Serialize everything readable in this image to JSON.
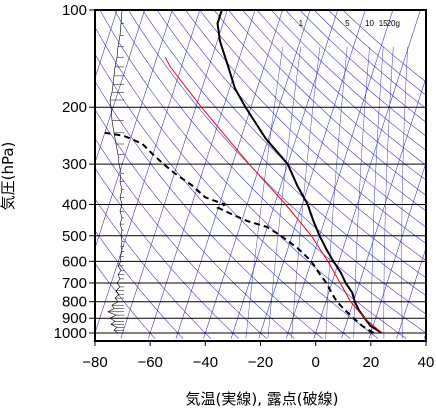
{
  "chart_data": {
    "type": "line",
    "title": "",
    "xlabel": "気温(実線), 露点(破線)",
    "ylabel": "気圧(hPa)",
    "xlim": [
      -80,
      40
    ],
    "ylim": [
      1040,
      100
    ],
    "yscale": "log",
    "x_ticks": [
      "−80",
      "−60",
      "−40",
      "−20",
      "0",
      "20",
      "40"
    ],
    "x_tick_values": [
      -80,
      -60,
      -40,
      -20,
      0,
      20,
      40
    ],
    "y_ticks": [
      "100",
      "200",
      "300",
      "400",
      "500",
      "600",
      "700",
      "800",
      "900",
      "1000"
    ],
    "y_tick_values": [
      100,
      200,
      300,
      400,
      500,
      600,
      700,
      800,
      900,
      1000
    ],
    "skew_degC_per_log_decade": 38,
    "mixing_ratio_labels": [
      "1",
      "5",
      "10",
      "15",
      "20g"
    ],
    "mixing_ratio_values": [
      1,
      5,
      10,
      15,
      20
    ],
    "background_line_color": "#3a3adb",
    "series": [
      {
        "kind": "temperature",
        "style": "solid",
        "color": "#000000",
        "points": [
          {
            "p": 1000,
            "t": 24
          },
          {
            "p": 950,
            "t": 19
          },
          {
            "p": 900,
            "t": 16
          },
          {
            "p": 850,
            "t": 13
          },
          {
            "p": 800,
            "t": 10.5
          },
          {
            "p": 750,
            "t": 8.5
          },
          {
            "p": 700,
            "t": 5
          },
          {
            "p": 650,
            "t": 2
          },
          {
            "p": 600,
            "t": -2
          },
          {
            "p": 550,
            "t": -6
          },
          {
            "p": 500,
            "t": -10
          },
          {
            "p": 450,
            "t": -14
          },
          {
            "p": 400,
            "t": -18
          },
          {
            "p": 350,
            "t": -24
          },
          {
            "p": 300,
            "t": -30
          },
          {
            "p": 250,
            "t": -41
          },
          {
            "p": 200,
            "t": -52
          },
          {
            "p": 175,
            "t": -58
          },
          {
            "p": 150,
            "t": -63
          },
          {
            "p": 125,
            "t": -69
          },
          {
            "p": 110,
            "t": -72
          },
          {
            "p": 100,
            "t": -72
          }
        ]
      },
      {
        "kind": "dewpoint",
        "style": "dashed",
        "color": "#000000",
        "points": [
          {
            "p": 1000,
            "t": 21
          },
          {
            "p": 950,
            "t": 16
          },
          {
            "p": 900,
            "t": 12
          },
          {
            "p": 850,
            "t": 8
          },
          {
            "p": 800,
            "t": 4
          },
          {
            "p": 750,
            "t": 1
          },
          {
            "p": 700,
            "t": -2
          },
          {
            "p": 650,
            "t": -6
          },
          {
            "p": 600,
            "t": -10
          },
          {
            "p": 550,
            "t": -16
          },
          {
            "p": 500,
            "t": -24
          },
          {
            "p": 470,
            "t": -30
          },
          {
            "p": 450,
            "t": -38
          },
          {
            "p": 430,
            "t": -44
          },
          {
            "p": 410,
            "t": -50
          },
          {
            "p": 400,
            "t": -48
          },
          {
            "p": 380,
            "t": -56
          },
          {
            "p": 350,
            "t": -62
          },
          {
            "p": 320,
            "t": -70
          },
          {
            "p": 300,
            "t": -75
          },
          {
            "p": 280,
            "t": -80
          },
          {
            "p": 260,
            "t": -85
          },
          {
            "p": 250,
            "t": -90
          },
          {
            "p": 245,
            "t": -93
          },
          {
            "p": 240,
            "t": -100
          }
        ]
      },
      {
        "kind": "parcel",
        "style": "solid",
        "color": "#ff0000",
        "points": [
          {
            "p": 1000,
            "t": 24
          },
          {
            "p": 900,
            "t": 16
          },
          {
            "p": 800,
            "t": 9
          },
          {
            "p": 700,
            "t": 3
          },
          {
            "p": 600,
            "t": -4
          },
          {
            "p": 500,
            "t": -13
          },
          {
            "p": 400,
            "t": -26
          },
          {
            "p": 300,
            "t": -44
          },
          {
            "p": 200,
            "t": -68
          },
          {
            "p": 150,
            "t": -84
          },
          {
            "p": 140,
            "t": -87
          }
        ]
      }
    ],
    "wind_profile": [
      {
        "p": 1000,
        "u": -8
      },
      {
        "p": 980,
        "u": -12
      },
      {
        "p": 960,
        "u": -9
      },
      {
        "p": 940,
        "u": -15
      },
      {
        "p": 920,
        "u": -11
      },
      {
        "p": 900,
        "u": -16
      },
      {
        "p": 880,
        "u": -10
      },
      {
        "p": 860,
        "u": -18
      },
      {
        "p": 840,
        "u": -12
      },
      {
        "p": 820,
        "u": -14
      },
      {
        "p": 800,
        "u": -8
      },
      {
        "p": 780,
        "u": -11
      },
      {
        "p": 760,
        "u": -7
      },
      {
        "p": 740,
        "u": -10
      },
      {
        "p": 720,
        "u": -6
      },
      {
        "p": 700,
        "u": -9
      },
      {
        "p": 680,
        "u": -6
      },
      {
        "p": 660,
        "u": -8
      },
      {
        "p": 640,
        "u": -5
      },
      {
        "p": 620,
        "u": -8
      },
      {
        "p": 600,
        "u": -5
      },
      {
        "p": 580,
        "u": -6
      },
      {
        "p": 560,
        "u": -4
      },
      {
        "p": 540,
        "u": -5
      },
      {
        "p": 520,
        "u": -4
      },
      {
        "p": 500,
        "u": -5
      },
      {
        "p": 480,
        "u": -4
      },
      {
        "p": 460,
        "u": -6
      },
      {
        "p": 440,
        "u": -4
      },
      {
        "p": 420,
        "u": -6
      },
      {
        "p": 400,
        "u": -4
      },
      {
        "p": 380,
        "u": -6
      },
      {
        "p": 360,
        "u": -4
      },
      {
        "p": 340,
        "u": -6
      },
      {
        "p": 320,
        "u": -5
      },
      {
        "p": 300,
        "u": -7
      },
      {
        "p": 280,
        "u": -8
      },
      {
        "p": 260,
        "u": -10
      },
      {
        "p": 240,
        "u": -12
      },
      {
        "p": 220,
        "u": -14
      },
      {
        "p": 200,
        "u": -15
      },
      {
        "p": 190,
        "u": -16
      },
      {
        "p": 180,
        "u": -14
      },
      {
        "p": 170,
        "u": -13
      },
      {
        "p": 160,
        "u": -12
      },
      {
        "p": 150,
        "u": -11
      },
      {
        "p": 140,
        "u": -9
      },
      {
        "p": 130,
        "u": -8
      },
      {
        "p": 120,
        "u": -6
      },
      {
        "p": 110,
        "u": -5
      },
      {
        "p": 100,
        "u": -4
      }
    ]
  }
}
